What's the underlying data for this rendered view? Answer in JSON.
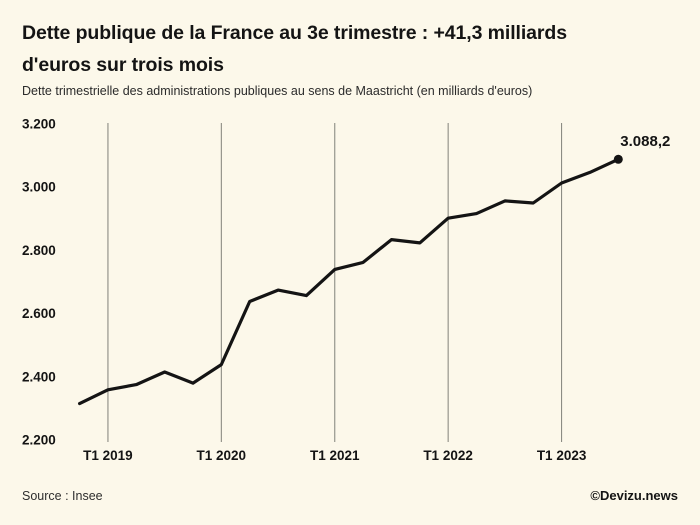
{
  "header": {
    "title_line1": "Dette publique de la France au 3e trimestre : +41,3 milliards",
    "title_line2": "d'euros sur trois mois",
    "subtitle": "Dette trimestrielle des administrations publiques au sens de Maastricht (en milliards d'euros)"
  },
  "footer": {
    "source": "Source : Insee",
    "credit": "©Devizu.news"
  },
  "chart_data": {
    "type": "line",
    "title": "Dette publique de la France au 3e trimestre : +41,3 milliards d'euros sur trois mois",
    "subtitle": "Dette trimestrielle des administrations publiques au sens de Maastricht (en milliards d'euros)",
    "x": [
      "T4 2018",
      "T1 2019",
      "T2 2019",
      "T3 2019",
      "T4 2019",
      "T1 2020",
      "T2 2020",
      "T3 2020",
      "T4 2020",
      "T1 2021",
      "T2 2021",
      "T3 2021",
      "T4 2021",
      "T1 2022",
      "T2 2022",
      "T3 2022",
      "T4 2022",
      "T1 2023",
      "T2 2023",
      "T3 2023"
    ],
    "values": [
      2315.3,
      2358.9,
      2375.4,
      2415.1,
      2380.1,
      2438.5,
      2638.3,
      2674.3,
      2657.0,
      2739.8,
      2762.0,
      2834.3,
      2823.8,
      2901.8,
      2916.3,
      2956.8,
      2950.1,
      3013.4,
      3046.9,
      3088.2
    ],
    "x_ticks": [
      {
        "label": "T1 2019",
        "index": 1
      },
      {
        "label": "T1 2020",
        "index": 5
      },
      {
        "label": "T1 2021",
        "index": 9
      },
      {
        "label": "T1 2022",
        "index": 13
      },
      {
        "label": "T1 2023",
        "index": 17
      }
    ],
    "y_ticks": [
      {
        "value": 3200,
        "label": "3.200"
      },
      {
        "value": 3000,
        "label": "3.000"
      },
      {
        "value": 2800,
        "label": "2.800"
      },
      {
        "value": 2600,
        "label": "2.600"
      },
      {
        "value": 2400,
        "label": "2.400"
      },
      {
        "value": 2200,
        "label": "2.200"
      }
    ],
    "ylim": [
      2200,
      3200
    ],
    "end_point_label": "3.088,2",
    "grid": "vertical-year-lines-only",
    "legend": "none",
    "colors": {
      "line": "#141414",
      "grid": "#8c8c84",
      "background": "#fcf8ea",
      "text": "#141414"
    }
  }
}
